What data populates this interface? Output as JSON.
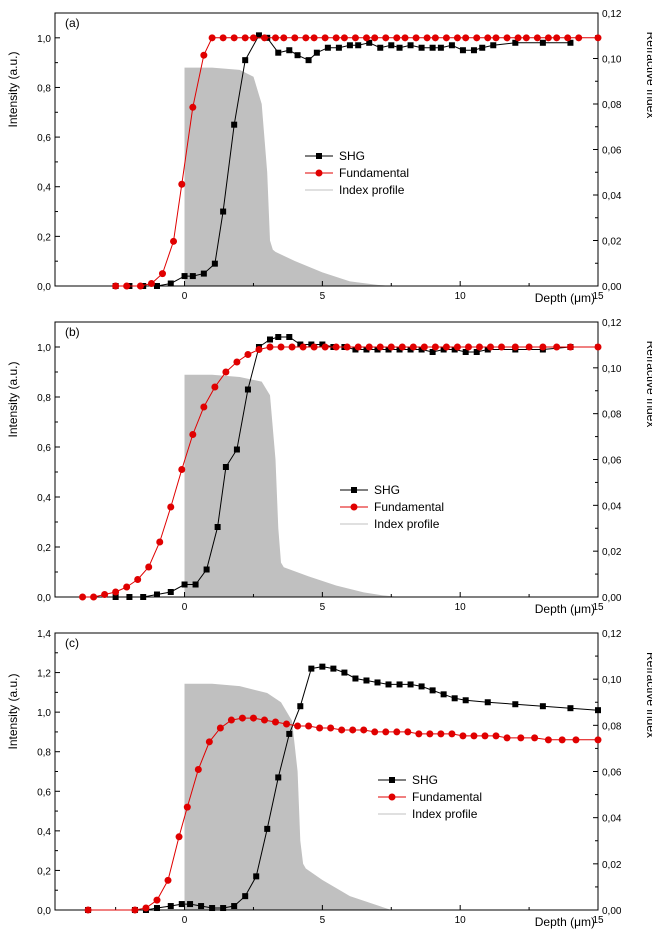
{
  "chart_data": [
    {
      "type": "line",
      "panel_label": "(a)",
      "xlabel": "Depth (μm)",
      "ylabel": "Intensity (a.u.)",
      "y2label": "Refractive Index",
      "xlim": [
        -4.7,
        15
      ],
      "ylim": [
        0,
        1.1
      ],
      "y2lim": [
        0,
        0.12
      ],
      "xticks": [
        "0",
        "5",
        "10",
        "15"
      ],
      "yticks": [
        "0,0",
        "0,2",
        "0,4",
        "0,6",
        "0,8",
        "1,0"
      ],
      "y2ticks": [
        "0,00",
        "0,02",
        "0,04",
        "0,06",
        "0,08",
        "0,10",
        "0,12"
      ],
      "legend": [
        "SHG",
        "Fundamental",
        "Index profile"
      ],
      "series": [
        {
          "name": "SHG",
          "color": "#000000",
          "marker": "square",
          "x": [
            -2.5,
            -2.0,
            -1.5,
            -1.0,
            -0.5,
            0.0,
            0.3,
            0.7,
            1.1,
            1.4,
            1.8,
            2.2,
            2.7,
            3.0,
            3.4,
            3.8,
            4.1,
            4.5,
            4.8,
            5.2,
            5.6,
            6.0,
            6.3,
            6.7,
            7.1,
            7.5,
            7.8,
            8.2,
            8.6,
            9.0,
            9.3,
            9.7,
            10.1,
            10.5,
            10.8,
            11.2,
            12.0,
            13.0,
            14.0
          ],
          "y": [
            0.0,
            0.0,
            0.0,
            0.0,
            0.01,
            0.04,
            0.04,
            0.05,
            0.09,
            0.3,
            0.65,
            0.91,
            1.01,
            1.0,
            0.94,
            0.95,
            0.93,
            0.91,
            0.94,
            0.96,
            0.96,
            0.97,
            0.97,
            0.98,
            0.96,
            0.97,
            0.96,
            0.97,
            0.96,
            0.96,
            0.96,
            0.97,
            0.95,
            0.95,
            0.96,
            0.97,
            0.98,
            0.98,
            0.98
          ]
        },
        {
          "name": "Fundamental",
          "color": "#e00000",
          "marker": "circle",
          "x": [
            -2.5,
            -2.1,
            -1.6,
            -1.2,
            -0.8,
            -0.4,
            -0.1,
            0.3,
            0.7,
            1.0,
            1.4,
            1.8,
            2.2,
            2.5,
            2.9,
            3.3,
            3.6,
            4.0,
            4.4,
            4.7,
            5.1,
            5.5,
            5.8,
            6.2,
            6.6,
            6.9,
            7.3,
            7.7,
            8.0,
            8.4,
            8.8,
            9.1,
            9.5,
            9.9,
            10.2,
            10.6,
            11.0,
            11.3,
            11.7,
            12.1,
            12.4,
            12.8,
            13.2,
            13.5,
            13.9,
            14.3,
            15.0
          ],
          "y": [
            0.0,
            0.0,
            0.0,
            0.01,
            0.05,
            0.18,
            0.41,
            0.72,
            0.93,
            1.0,
            1.0,
            1.0,
            1.0,
            1.0,
            1.0,
            1.0,
            1.0,
            1.0,
            1.0,
            1.0,
            1.0,
            1.0,
            1.0,
            1.0,
            1.0,
            1.0,
            1.0,
            1.0,
            1.0,
            1.0,
            1.0,
            1.0,
            1.0,
            1.0,
            1.0,
            1.0,
            1.0,
            1.0,
            1.0,
            1.0,
            1.0,
            1.0,
            1.0,
            1.0,
            1.0,
            1.0,
            1.0
          ]
        },
        {
          "name": "Index profile",
          "color": "#c0c0c0",
          "area": true,
          "axis": "y2",
          "x": [
            0.0,
            0.0,
            1.0,
            2.0,
            2.5,
            2.8,
            3.0,
            3.1,
            3.2,
            3.3,
            4.0,
            5.0,
            6.0,
            7.0,
            7.5,
            15.0
          ],
          "y": [
            0.0,
            0.096,
            0.096,
            0.095,
            0.092,
            0.08,
            0.05,
            0.02,
            0.016,
            0.015,
            0.011,
            0.006,
            0.002,
            0.0005,
            0.0,
            0.0
          ]
        }
      ]
    },
    {
      "type": "line",
      "panel_label": "(b)",
      "xlabel": "Depth (μm)",
      "ylabel": "Intensity (a.u.)",
      "y2label": "Refractive Index",
      "xlim": [
        -4.7,
        15
      ],
      "ylim": [
        0,
        1.1
      ],
      "y2lim": [
        0,
        0.12
      ],
      "xticks": [
        "0",
        "5",
        "10",
        "15"
      ],
      "yticks": [
        "0,0",
        "0,2",
        "0,4",
        "0,6",
        "0,8",
        "1,0"
      ],
      "y2ticks": [
        "0,00",
        "0,02",
        "0,04",
        "0,06",
        "0,08",
        "0,10",
        "0,12"
      ],
      "legend": [
        "SHG",
        "Fundamental",
        "Index profile"
      ],
      "series": [
        {
          "name": "SHG",
          "color": "#000000",
          "marker": "square",
          "x": [
            -2.5,
            -2.0,
            -1.5,
            -1.0,
            -0.5,
            0.0,
            0.4,
            0.8,
            1.2,
            1.5,
            1.9,
            2.3,
            2.7,
            3.1,
            3.4,
            3.8,
            4.2,
            4.6,
            5.0,
            5.4,
            5.8,
            6.2,
            6.6,
            7.0,
            7.4,
            7.8,
            8.2,
            8.6,
            9.0,
            9.4,
            9.8,
            10.2,
            10.6,
            11.0,
            12.0,
            13.0,
            14.0
          ],
          "y": [
            0.0,
            0.0,
            0.0,
            0.01,
            0.02,
            0.05,
            0.05,
            0.11,
            0.28,
            0.52,
            0.59,
            0.83,
            1.0,
            1.03,
            1.04,
            1.04,
            1.01,
            1.01,
            1.01,
            1.0,
            1.0,
            0.99,
            0.99,
            0.99,
            0.99,
            0.99,
            0.99,
            0.99,
            0.98,
            0.99,
            0.99,
            0.98,
            0.98,
            0.99,
            0.99,
            0.99,
            1.0
          ]
        },
        {
          "name": "Fundamental",
          "color": "#e00000",
          "marker": "circle",
          "x": [
            -3.7,
            -3.3,
            -2.9,
            -2.5,
            -2.1,
            -1.7,
            -1.3,
            -0.9,
            -0.5,
            -0.1,
            0.3,
            0.7,
            1.1,
            1.5,
            1.9,
            2.3,
            2.7,
            3.1,
            3.5,
            3.9,
            4.3,
            4.7,
            5.1,
            5.5,
            5.9,
            6.3,
            6.7,
            7.1,
            7.5,
            7.9,
            8.3,
            8.7,
            9.1,
            9.5,
            9.9,
            10.3,
            10.7,
            11.1,
            11.5,
            12.0,
            12.5,
            13.0,
            13.5,
            14.0,
            15.0
          ],
          "y": [
            0.0,
            0.0,
            0.01,
            0.02,
            0.04,
            0.07,
            0.12,
            0.22,
            0.36,
            0.51,
            0.65,
            0.76,
            0.84,
            0.9,
            0.94,
            0.97,
            0.99,
            1.0,
            1.0,
            1.0,
            1.0,
            1.0,
            1.0,
            1.0,
            1.0,
            1.0,
            1.0,
            1.0,
            1.0,
            1.0,
            1.0,
            1.0,
            1.0,
            1.0,
            1.0,
            1.0,
            1.0,
            1.0,
            1.0,
            1.0,
            1.0,
            1.0,
            1.0,
            1.0,
            1.0
          ]
        },
        {
          "name": "Index profile",
          "color": "#c0c0c0",
          "area": true,
          "axis": "y2",
          "x": [
            0.0,
            0.0,
            1.0,
            2.0,
            2.8,
            3.1,
            3.3,
            3.4,
            3.5,
            3.6,
            4.5,
            5.5,
            6.5,
            7.2,
            7.8,
            15.0
          ],
          "y": [
            0.0,
            0.097,
            0.097,
            0.096,
            0.094,
            0.088,
            0.06,
            0.03,
            0.015,
            0.013,
            0.009,
            0.005,
            0.002,
            0.0007,
            0.0,
            0.0
          ]
        }
      ]
    },
    {
      "type": "line",
      "panel_label": "(c)",
      "xlabel": "Depth (μm)",
      "ylabel": "Intensity (a.u.)",
      "y2label": "Refractive index",
      "xlim": [
        -4.7,
        15
      ],
      "ylim": [
        0,
        1.4
      ],
      "y2lim": [
        0,
        0.12
      ],
      "xticks": [
        "0",
        "5",
        "10",
        "15"
      ],
      "yticks": [
        "0,0",
        "0,2",
        "0,4",
        "0,6",
        "0,8",
        "1,0",
        "1,2",
        "1,4"
      ],
      "y2ticks": [
        "0,00",
        "0,02",
        "0,04",
        "0,06",
        "0,08",
        "0,10",
        "0,12"
      ],
      "legend": [
        "SHG",
        "Fundamental",
        "Index profile"
      ],
      "series": [
        {
          "name": "SHG",
          "color": "#000000",
          "marker": "square",
          "x": [
            -3.5,
            -1.8,
            -1.4,
            -1.0,
            -0.5,
            -0.1,
            0.2,
            0.6,
            1.0,
            1.4,
            1.8,
            2.2,
            2.6,
            3.0,
            3.4,
            3.8,
            4.2,
            4.6,
            5.0,
            5.4,
            5.8,
            6.2,
            6.6,
            7.0,
            7.4,
            7.8,
            8.2,
            8.6,
            9.0,
            9.4,
            9.8,
            10.2,
            11.0,
            12.0,
            13.0,
            14.0,
            15.0
          ],
          "y": [
            0.0,
            0.0,
            0.0,
            0.01,
            0.02,
            0.03,
            0.03,
            0.02,
            0.01,
            0.01,
            0.02,
            0.07,
            0.17,
            0.41,
            0.67,
            0.89,
            1.03,
            1.22,
            1.23,
            1.22,
            1.2,
            1.17,
            1.16,
            1.15,
            1.14,
            1.14,
            1.14,
            1.13,
            1.11,
            1.09,
            1.07,
            1.06,
            1.05,
            1.04,
            1.03,
            1.02,
            1.01
          ]
        },
        {
          "name": "Fundamental",
          "color": "#e00000",
          "marker": "circle",
          "x": [
            -3.5,
            -1.8,
            -1.4,
            -1.0,
            -0.6,
            -0.2,
            0.1,
            0.5,
            0.9,
            1.3,
            1.7,
            2.1,
            2.5,
            2.9,
            3.3,
            3.7,
            4.1,
            4.5,
            4.9,
            5.3,
            5.7,
            6.1,
            6.5,
            6.9,
            7.3,
            7.7,
            8.1,
            8.5,
            8.9,
            9.3,
            9.7,
            10.1,
            10.5,
            10.9,
            11.3,
            11.7,
            12.2,
            12.7,
            13.2,
            13.7,
            14.2,
            15.0
          ],
          "y": [
            0.0,
            0.0,
            0.01,
            0.05,
            0.15,
            0.37,
            0.52,
            0.71,
            0.85,
            0.92,
            0.96,
            0.97,
            0.97,
            0.96,
            0.95,
            0.94,
            0.93,
            0.93,
            0.92,
            0.92,
            0.91,
            0.91,
            0.91,
            0.9,
            0.9,
            0.9,
            0.9,
            0.89,
            0.89,
            0.89,
            0.89,
            0.88,
            0.88,
            0.88,
            0.88,
            0.87,
            0.87,
            0.87,
            0.86,
            0.86,
            0.86,
            0.86
          ]
        },
        {
          "name": "Index profile",
          "color": "#c0c0c0",
          "area": true,
          "axis": "y2",
          "x": [
            0.0,
            0.0,
            1.0,
            2.0,
            3.0,
            3.5,
            3.9,
            4.1,
            4.2,
            4.3,
            4.4,
            5.0,
            6.0,
            7.0,
            7.5,
            15.0
          ],
          "y": [
            0.0,
            0.098,
            0.098,
            0.097,
            0.094,
            0.09,
            0.082,
            0.06,
            0.03,
            0.02,
            0.018,
            0.013,
            0.006,
            0.002,
            0.0,
            0.0
          ]
        }
      ]
    }
  ]
}
